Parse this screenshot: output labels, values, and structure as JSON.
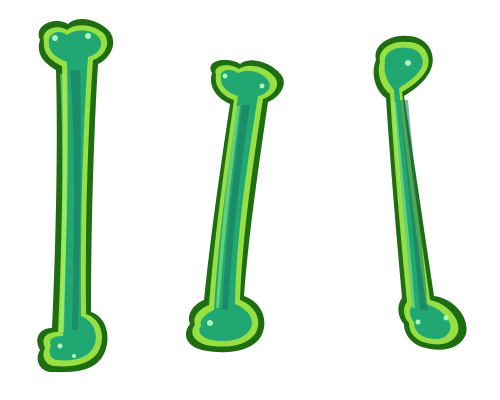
{
  "illustration": {
    "subject": "bones",
    "count": 3,
    "colors": {
      "outline": "#1e6d12",
      "glow": "#96e043",
      "body": "#21a772",
      "core": "#17775f",
      "highlight": "#bfffc2",
      "background": "#ffffff"
    },
    "bones": [
      {
        "name": "left-bone"
      },
      {
        "name": "middle-bone"
      },
      {
        "name": "right-bone"
      }
    ]
  }
}
